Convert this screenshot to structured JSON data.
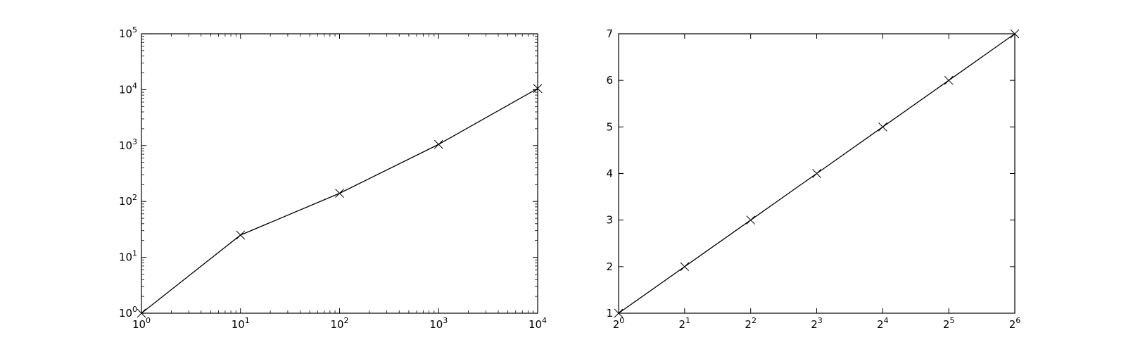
{
  "colors": {
    "background": "#ffffff",
    "axes": "#000000",
    "line": "#000000"
  },
  "chart_data": [
    {
      "type": "line",
      "title": "",
      "xlabel": "",
      "ylabel": "",
      "x_scale": "log10",
      "y_scale": "log10",
      "xlim": [
        1,
        10000
      ],
      "ylim": [
        1,
        100000
      ],
      "grid": false,
      "marker": "x",
      "x_ticks": [
        1,
        10,
        100,
        1000,
        10000
      ],
      "x_tick_labels": [
        {
          "base": "10",
          "exp": "0"
        },
        {
          "base": "10",
          "exp": "1"
        },
        {
          "base": "10",
          "exp": "2"
        },
        {
          "base": "10",
          "exp": "3"
        },
        {
          "base": "10",
          "exp": "4"
        }
      ],
      "y_ticks": [
        1,
        10,
        100,
        1000,
        10000,
        100000
      ],
      "y_tick_labels": [
        {
          "base": "10",
          "exp": "0"
        },
        {
          "base": "10",
          "exp": "1"
        },
        {
          "base": "10",
          "exp": "2"
        },
        {
          "base": "10",
          "exp": "3"
        },
        {
          "base": "10",
          "exp": "4"
        },
        {
          "base": "10",
          "exp": "5"
        }
      ],
      "series": [
        {
          "x": [
            1,
            10,
            100,
            1000,
            10000
          ],
          "y": [
            1,
            25,
            140,
            1050,
            10500
          ]
        }
      ]
    },
    {
      "type": "line",
      "title": "",
      "xlabel": "",
      "ylabel": "",
      "x_scale": "log2",
      "y_scale": "linear",
      "xlim": [
        1,
        64
      ],
      "ylim": [
        1,
        7
      ],
      "grid": false,
      "marker": "x",
      "x_ticks": [
        1,
        2,
        4,
        8,
        16,
        32,
        64
      ],
      "x_tick_labels": [
        {
          "base": "2",
          "exp": "0"
        },
        {
          "base": "2",
          "exp": "1"
        },
        {
          "base": "2",
          "exp": "2"
        },
        {
          "base": "2",
          "exp": "3"
        },
        {
          "base": "2",
          "exp": "4"
        },
        {
          "base": "2",
          "exp": "5"
        },
        {
          "base": "2",
          "exp": "6"
        }
      ],
      "y_ticks": [
        1,
        2,
        3,
        4,
        5,
        6,
        7
      ],
      "y_tick_labels": [
        "1",
        "2",
        "3",
        "4",
        "5",
        "6",
        "7"
      ],
      "series": [
        {
          "x": [
            1,
            2,
            4,
            8,
            16,
            32,
            64
          ],
          "y": [
            1,
            2,
            3,
            4,
            5,
            6,
            7
          ]
        }
      ]
    }
  ]
}
